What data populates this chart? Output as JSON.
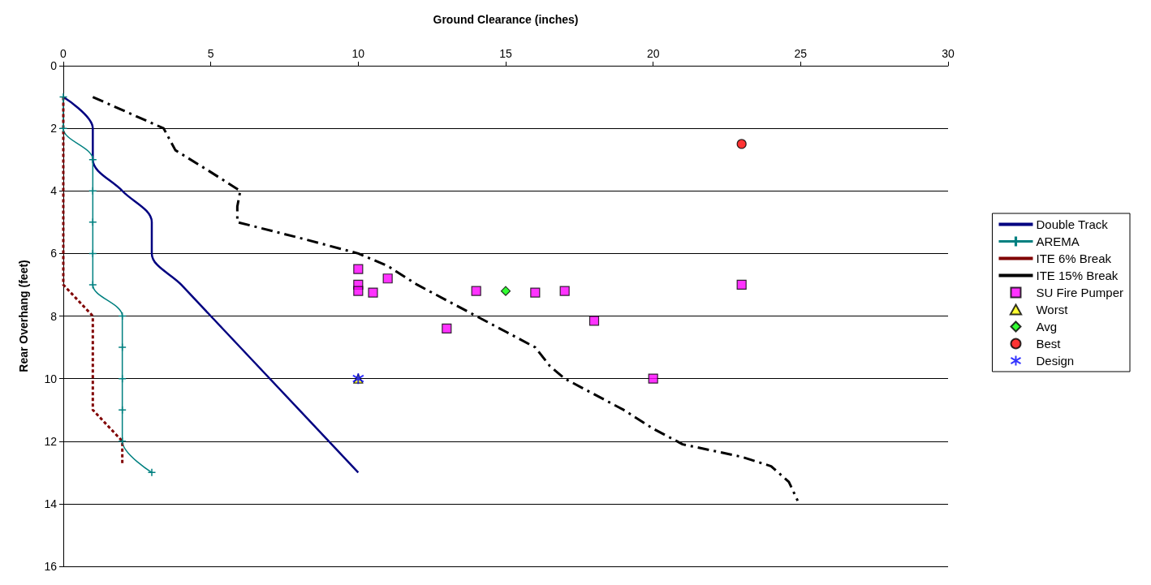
{
  "chart_data": {
    "type": "line",
    "xlabel": "Ground Clearance (inches)",
    "ylabel": "Rear Overhang (feet)",
    "xlim": [
      0,
      30
    ],
    "xticks": [
      0,
      5,
      10,
      15,
      20,
      25,
      30
    ],
    "ylim": [
      16,
      0
    ],
    "yticks": [
      0,
      2,
      4,
      6,
      8,
      10,
      12,
      14,
      16
    ],
    "grid": "y",
    "legend": "right",
    "series": [
      {
        "name": "Double Track",
        "color": "#000080",
        "marker": "none",
        "line_style": "solid",
        "x": [
          0,
          1,
          1,
          2,
          3,
          3,
          4,
          10
        ],
        "values": [
          1,
          2,
          3,
          4,
          5,
          6,
          7,
          13
        ]
      },
      {
        "name": "AREMA",
        "color": "#008080",
        "marker": "cross",
        "line_style": "solid",
        "x": [
          0,
          0,
          1,
          1,
          1,
          1,
          1,
          2,
          2,
          2,
          2,
          2,
          3
        ],
        "values": [
          1,
          2,
          3,
          4,
          5,
          6,
          7,
          8,
          9,
          10,
          11,
          12,
          13
        ]
      },
      {
        "name": "ITE 6% Break",
        "color": "#800000",
        "marker": "none",
        "line_style": "dotted",
        "x": [
          0,
          0,
          1,
          1,
          2,
          2
        ],
        "values": [
          1,
          7,
          8,
          11,
          12,
          12.7
        ]
      },
      {
        "name": "ITE 15% Break",
        "color": "#000000",
        "marker": "none",
        "line_style": "dashed",
        "x": [
          1,
          2.2,
          3.4,
          3.8,
          5,
          6,
          5.9,
          5.9,
          8,
          10,
          11,
          12,
          14,
          15,
          16,
          16.5,
          17,
          18,
          19,
          20,
          21,
          23,
          24,
          24.6,
          24.9
        ],
        "values": [
          1,
          1.5,
          2,
          2.7,
          3.4,
          4,
          4.5,
          5,
          5.5,
          6,
          6.4,
          7,
          8,
          8.5,
          9,
          9.6,
          10,
          10.5,
          11,
          11.6,
          12.1,
          12.5,
          12.8,
          13.3,
          13.9
        ]
      },
      {
        "name": "SU Fire Pumper",
        "type": "scatter",
        "color": "#ff00ff",
        "marker": "square",
        "x": [
          10,
          10,
          10,
          10.5,
          11,
          13,
          14,
          16,
          17,
          18,
          20,
          23
        ],
        "values": [
          6.5,
          7,
          7.2,
          7.25,
          6.8,
          8.4,
          7.2,
          7.25,
          7.2,
          8.15,
          10,
          7
        ]
      },
      {
        "name": "Worst",
        "type": "scatter",
        "color": "#ffff00",
        "marker": "triangle",
        "x": [
          10
        ],
        "values": [
          10
        ]
      },
      {
        "name": "Avg",
        "type": "scatter",
        "color": "#00ff00",
        "marker": "diamond",
        "x": [
          15
        ],
        "values": [
          7.2
        ]
      },
      {
        "name": "Best",
        "type": "scatter",
        "color": "#ff0000",
        "marker": "circle",
        "x": [
          23
        ],
        "values": [
          2.5
        ]
      },
      {
        "name": "Design",
        "type": "scatter",
        "color": "#0000ff",
        "marker": "cross",
        "x": [
          10
        ],
        "values": [
          10
        ]
      }
    ]
  }
}
